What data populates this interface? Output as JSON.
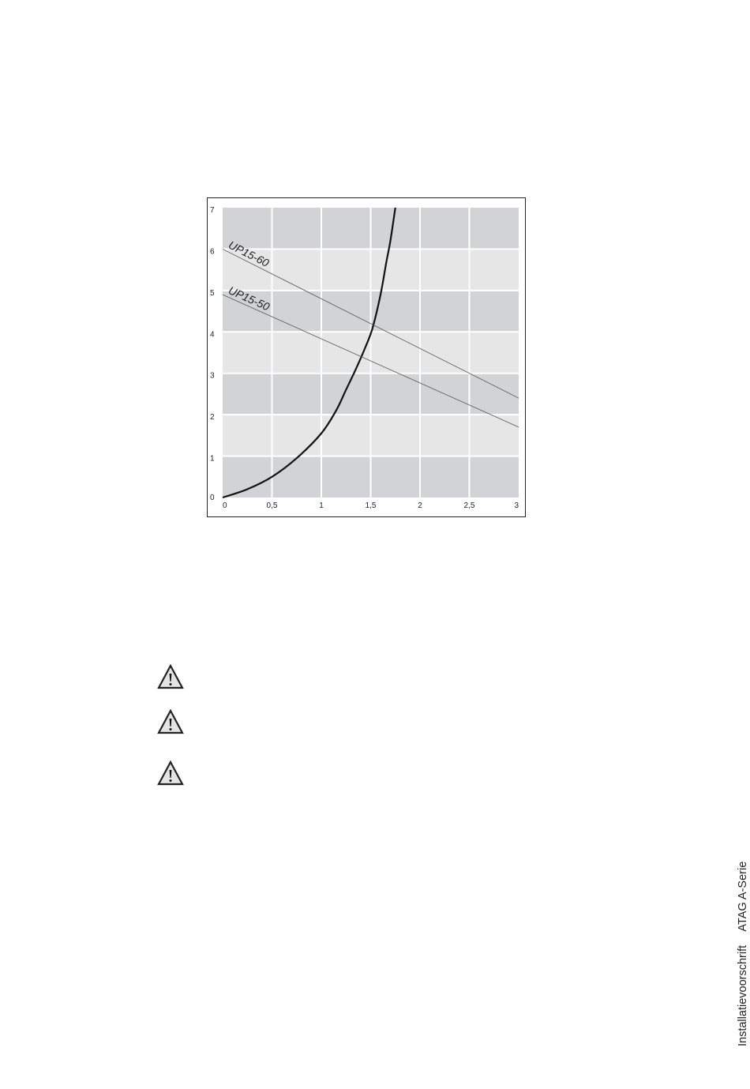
{
  "chart_data": {
    "type": "line",
    "title": "",
    "xlabel": "",
    "ylabel": "",
    "xlim": [
      0,
      3
    ],
    "ylim": [
      0,
      7
    ],
    "x_ticks": [
      "0",
      "0,5",
      "1",
      "1,5",
      "2",
      "2,5",
      "3"
    ],
    "y_ticks": [
      "0",
      "1",
      "2",
      "3",
      "4",
      "5",
      "6",
      "7"
    ],
    "grid": true,
    "series": [
      {
        "name": "",
        "style": "thick",
        "color": "#111111",
        "points": [
          [
            0,
            0
          ],
          [
            0.25,
            0.2
          ],
          [
            0.5,
            0.5
          ],
          [
            0.75,
            0.95
          ],
          [
            1,
            1.55
          ],
          [
            1.15,
            2.1
          ],
          [
            1.25,
            2.6
          ],
          [
            1.35,
            3.1
          ],
          [
            1.45,
            3.65
          ],
          [
            1.52,
            4.1
          ],
          [
            1.6,
            4.9
          ],
          [
            1.66,
            5.7
          ],
          [
            1.7,
            6.2
          ],
          [
            1.75,
            7
          ]
        ]
      },
      {
        "name": "UP15-60",
        "style": "thin",
        "color": "#555555",
        "points": [
          [
            0,
            6.0
          ],
          [
            3,
            2.4
          ]
        ]
      },
      {
        "name": "UP15-50",
        "style": "thin",
        "color": "#555555",
        "points": [
          [
            0,
            4.9
          ],
          [
            3,
            1.7
          ]
        ]
      }
    ],
    "colors": {
      "band_dark": "#d2d3d5",
      "band_light": "#e6e6e7",
      "grid": "#ffffff"
    }
  },
  "warnings": [
    {
      "icon": "warning-triangle-icon"
    },
    {
      "icon": "warning-triangle-icon"
    },
    {
      "icon": "warning-triangle-icon"
    }
  ],
  "footer": {
    "doc_type": "Installatievoorschrift",
    "product": "ATAG A-Serie"
  }
}
